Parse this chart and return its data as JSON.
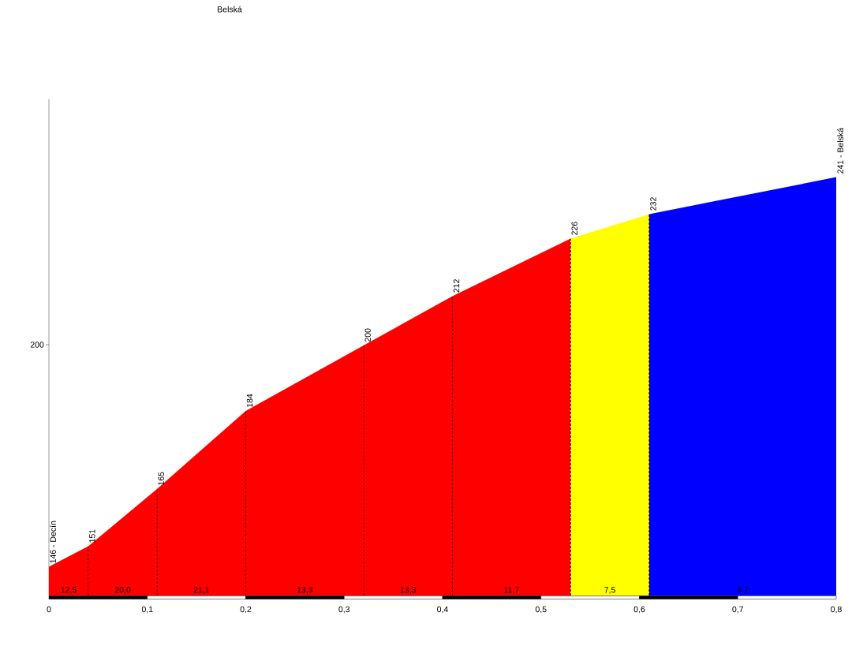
{
  "chart_data": {
    "type": "area",
    "title": "Belská",
    "xlim": [
      0,
      0.8
    ],
    "ylim": [
      139,
      260
    ],
    "xticks": [
      0,
      {
        "value": 0.1,
        "label": "0,1"
      },
      {
        "value": 0.2,
        "label": "0,2"
      },
      {
        "value": 0.3,
        "label": "0,3"
      },
      {
        "value": 0.4,
        "label": "0,4"
      },
      {
        "value": 0.5,
        "label": "0,5"
      },
      {
        "value": 0.6,
        "label": "0,6"
      },
      {
        "value": 0.7,
        "label": "0,7"
      },
      {
        "value": 0.8,
        "label": "0,8"
      }
    ],
    "series": [
      {
        "color": "#ff0000",
        "x": [
          0,
          0.04,
          0.11,
          0.2,
          0.32,
          0.41,
          0.53
        ],
        "values": [
          146,
          151,
          165,
          184,
          200,
          212,
          226
        ],
        "value_labels": [
          "146 - Decín",
          "151",
          "165",
          "184",
          "200",
          "212",
          "226"
        ]
      },
      {
        "color": "#ffff00",
        "x": [
          0.53,
          0.61
        ],
        "values": [
          226,
          232
        ],
        "value_labels": [
          null,
          "232"
        ]
      },
      {
        "color": "#0000ff",
        "x": [
          0.61,
          0.8
        ],
        "values": [
          232,
          241
        ],
        "value_labels": [
          null,
          "241 - Belská"
        ]
      }
    ],
    "annotations": [
      "200",
      {
        "text": "12,5",
        "x": 0.02,
        "y": 139
      },
      {
        "text": "20,0",
        "x": 0.075,
        "y": 139
      },
      {
        "text": "21,1",
        "x": 0.155,
        "y": 139
      },
      {
        "text": "13,3",
        "x": 0.26,
        "y": 139
      },
      {
        "text": "13,3",
        "x": 0.365,
        "y": 139
      },
      {
        "text": "11,7",
        "x": 0.47,
        "y": 139
      },
      {
        "text": "7,5",
        "x": 0.57,
        "y": 139
      },
      {
        "text": "4,7",
        "x": 0.705,
        "y": 139
      }
    ]
  }
}
